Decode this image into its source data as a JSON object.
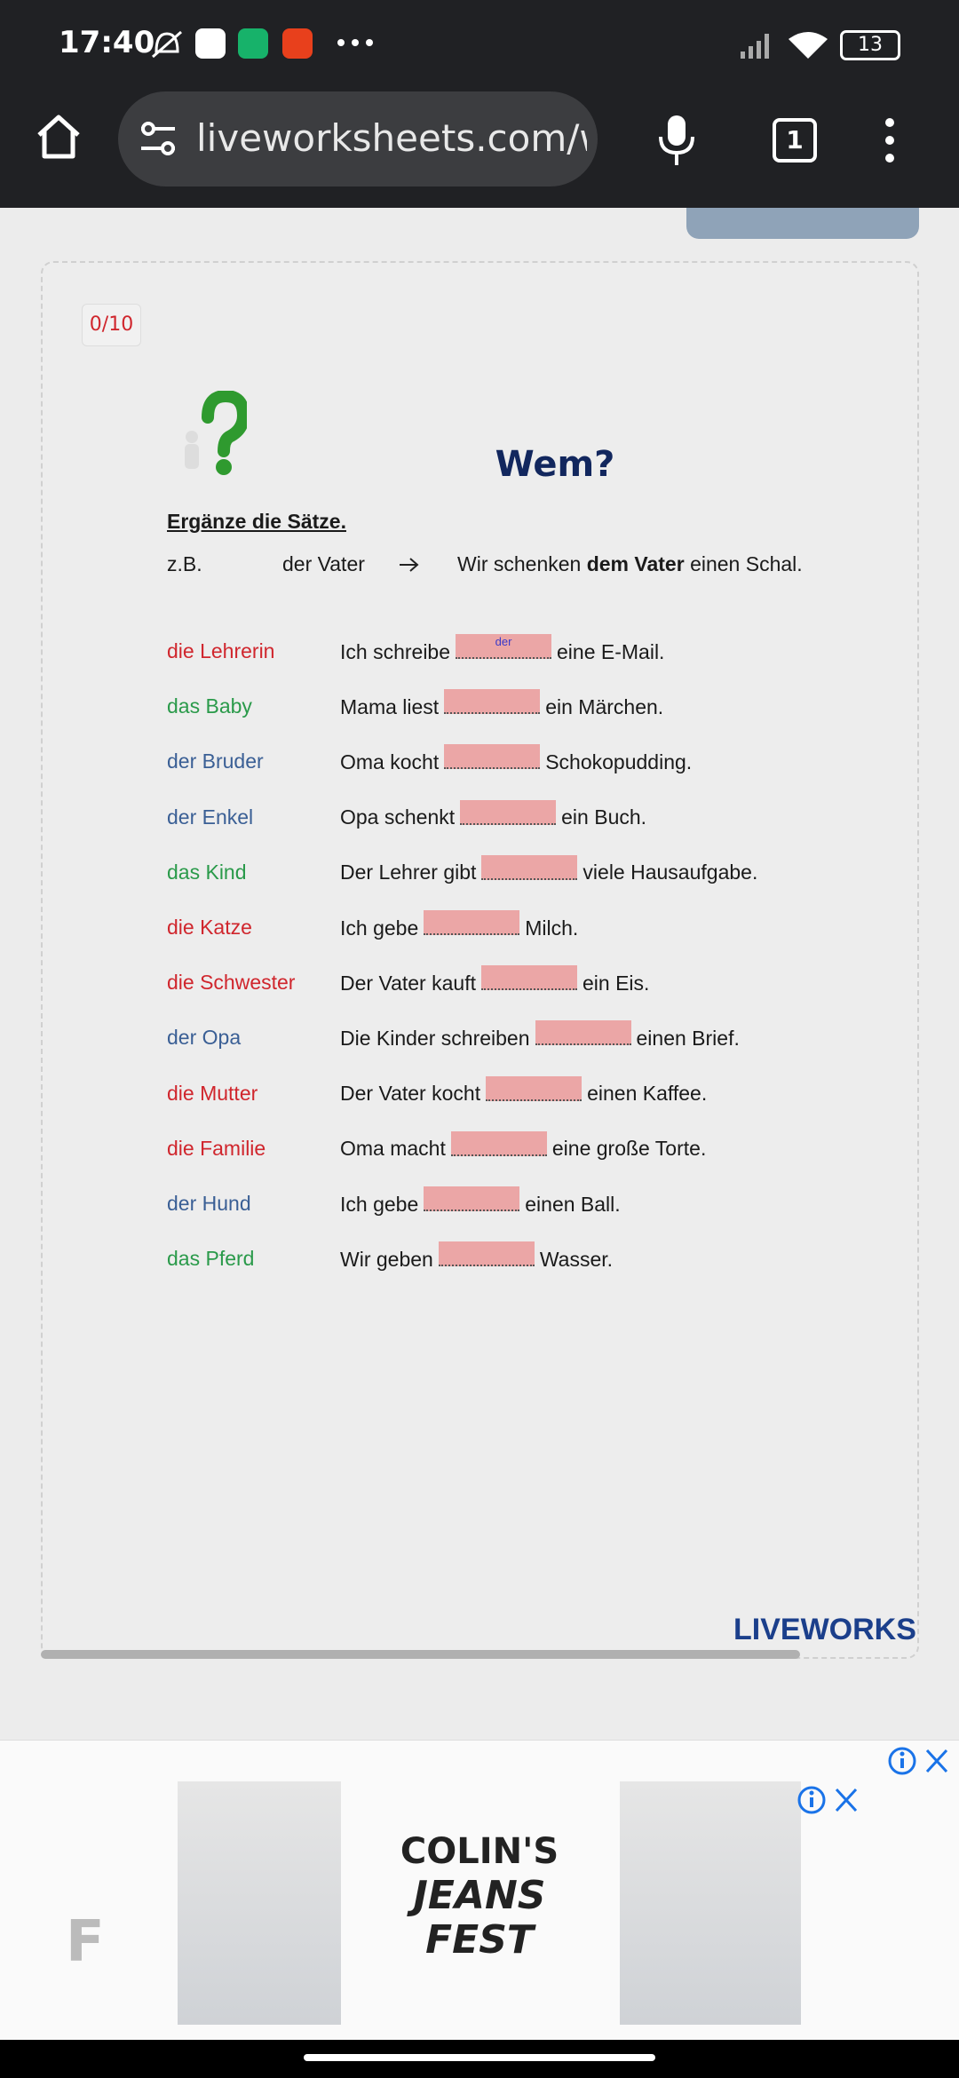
{
  "status_bar": {
    "time": "17:40",
    "battery": "13"
  },
  "browser": {
    "url": "liveworksheets.com/w",
    "tabs": "1"
  },
  "worksheet": {
    "score": "0/10",
    "title": "Wem?",
    "instruction": "Ergänze die Sätze.",
    "example": {
      "label": "z.B.",
      "noun": "der Vater",
      "before": "Wir schenken",
      "bold": "dem Vater",
      "after": "einen Schal."
    },
    "rows": [
      {
        "noun": "die Lehrerin",
        "color": "#d0262d",
        "before": "Ich schreibe",
        "answer": "der",
        "after": "eine E-Mail."
      },
      {
        "noun": "das Baby",
        "color": "#2a9a4a",
        "before": "Mama liest",
        "after": "ein Märchen."
      },
      {
        "noun": "der Bruder",
        "color": "#3a5f95",
        "before": "Oma kocht",
        "after": "Schokopudding."
      },
      {
        "noun": "der Enkel",
        "color": "#3a5f95",
        "before": "Opa schenkt",
        "after": "ein Buch."
      },
      {
        "noun": "das Kind",
        "color": "#2a9a4a",
        "before": "Der Lehrer gibt",
        "after": "viele Hausaufgabe."
      },
      {
        "noun": "die Katze",
        "color": "#d0262d",
        "before": "Ich gebe",
        "after": "Milch."
      },
      {
        "noun": "die Schwester",
        "color": "#d0262d",
        "before": "Der Vater kauft",
        "after": "ein Eis."
      },
      {
        "noun": "der Opa",
        "color": "#3a5f95",
        "before": "Die Kinder schreiben",
        "after": "einen Brief."
      },
      {
        "noun": "die Mutter",
        "color": "#d0262d",
        "before": "Der Vater kocht",
        "after": "einen Kaffee."
      },
      {
        "noun": "die Familie",
        "color": "#d0262d",
        "before": "Oma macht",
        "after": "eine große Torte."
      },
      {
        "noun": "der Hund",
        "color": "#3a5f95",
        "before": "Ich gebe",
        "after": "einen Ball."
      },
      {
        "noun": "das Pferd",
        "color": "#2a9a4a",
        "before": "Wir geben",
        "after": "Wasser."
      }
    ],
    "logo": "LIVEWORKS"
  },
  "ad": {
    "brand": "COLIN'S",
    "line1": "JEANS",
    "line2": "FEST",
    "side": "F"
  }
}
